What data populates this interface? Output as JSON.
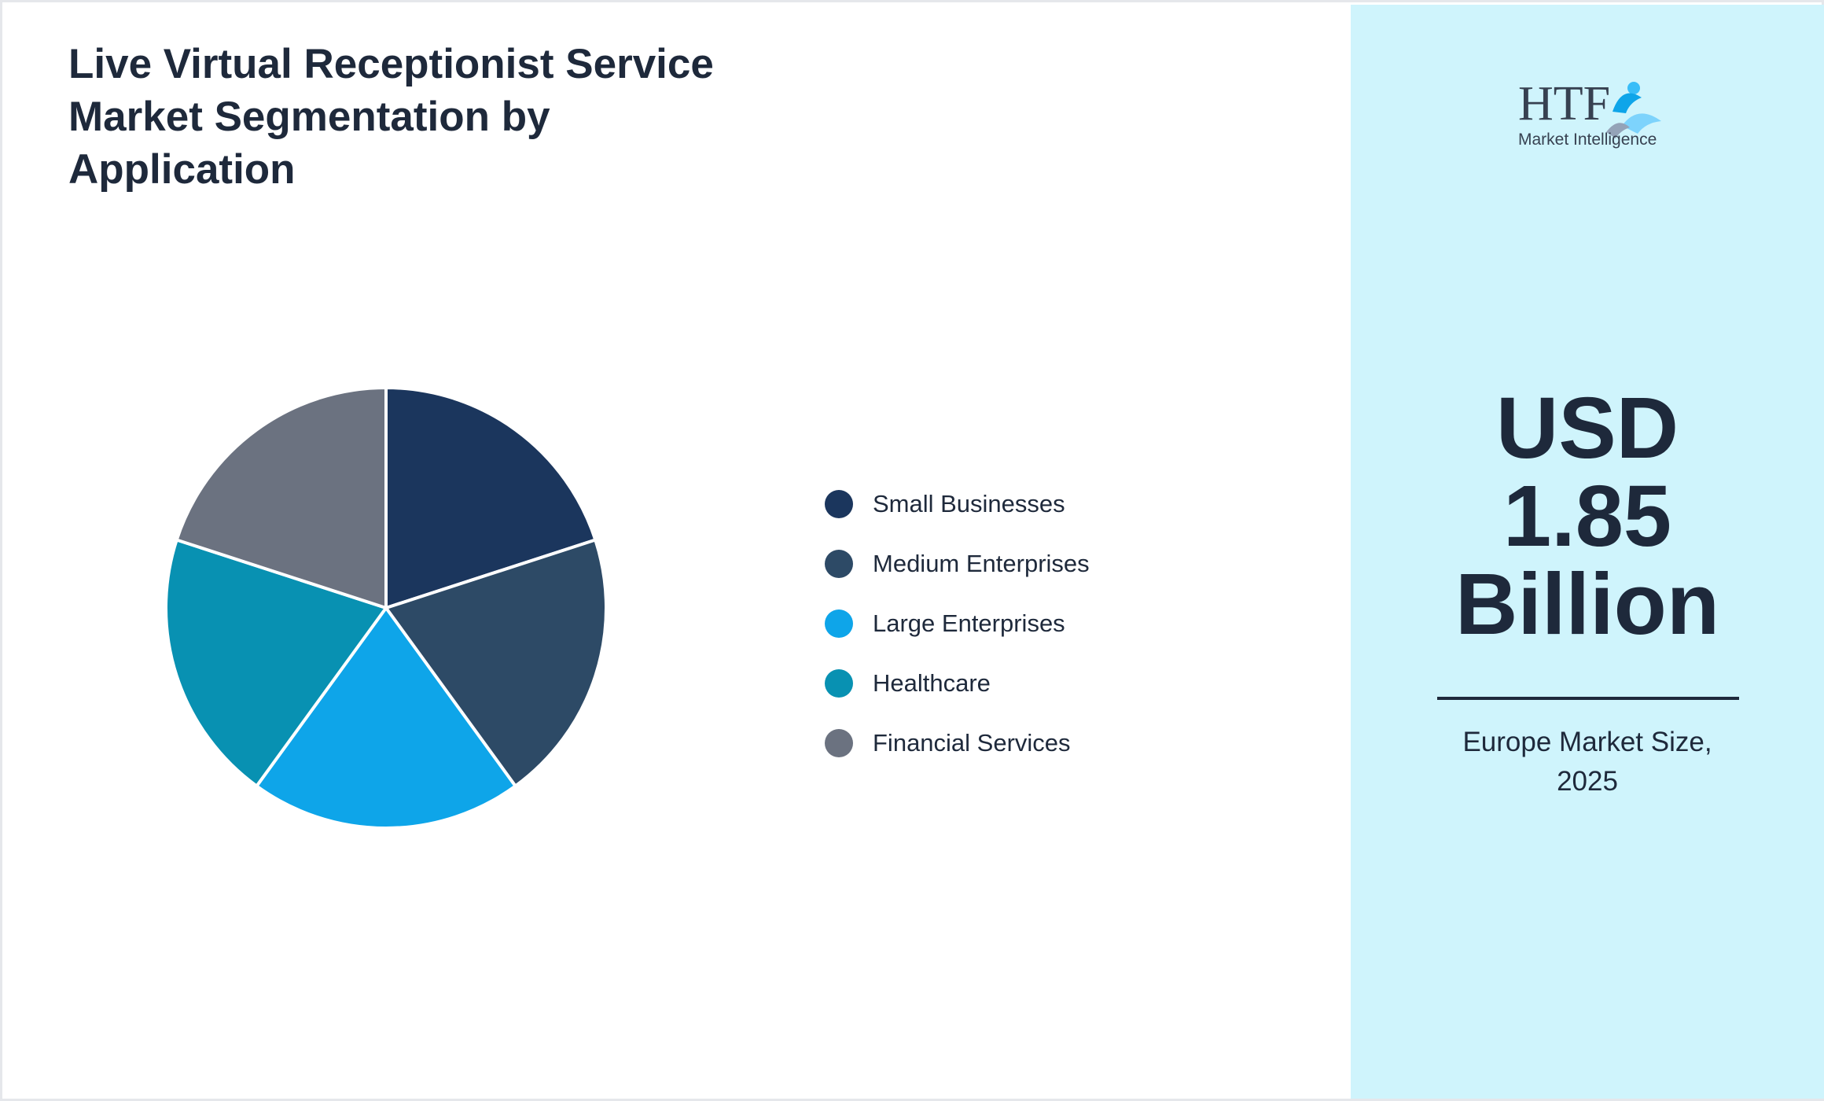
{
  "chart_data": {
    "type": "pie",
    "title": "Live Virtual Receptionist Service Market Segmentation by Application",
    "categories": [
      "Small Businesses",
      "Medium Enterprises",
      "Large Enterprises",
      "Healthcare",
      "Financial Services"
    ],
    "values": [
      20,
      20,
      20,
      20,
      20
    ],
    "colors": [
      "#1b365d",
      "#2d4a66",
      "#0ea5e9",
      "#0891b2",
      "#6b7280"
    ],
    "legend_position": "right"
  },
  "side_panel": {
    "logo_text": "HTF",
    "logo_subtext": "Market Intelligence",
    "market_value_lines": [
      "USD",
      "1.85",
      "Billion"
    ],
    "caption_lines": [
      "Europe Market Size,",
      "2025"
    ]
  }
}
